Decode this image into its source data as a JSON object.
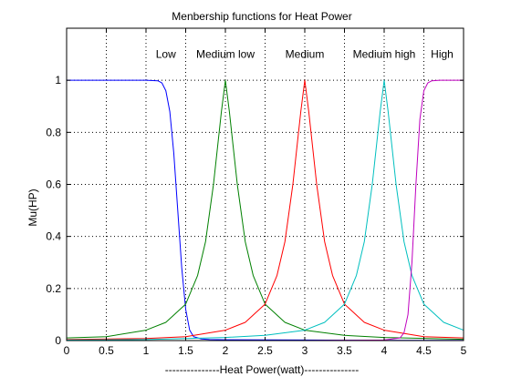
{
  "chart_data": {
    "type": "line",
    "title": "Menbership functions for Heat Power",
    "xlabel": "---------------Heat Power(watt)---------------",
    "ylabel": "Mu(HP)",
    "xlim": [
      0,
      5
    ],
    "ylim": [
      0,
      1.2
    ],
    "xticks": [
      "0",
      "0.5",
      "1",
      "1.5",
      "2",
      "2.5",
      "3",
      "3.5",
      "4",
      "4.5",
      "5"
    ],
    "yticks": [
      "0",
      "0.2",
      "0.4",
      "0.6",
      "0.8",
      "1"
    ],
    "grid": true,
    "grid_style": "dotted",
    "series": [
      {
        "label": "Low",
        "label_x": 1.25,
        "label_y": 1.1,
        "color": "#0000ff",
        "x": [
          0,
          1.0,
          1.15,
          1.2,
          1.25,
          1.3,
          1.35,
          1.4,
          1.45,
          1.5,
          1.55,
          1.6,
          1.7,
          1.8,
          2.0,
          3.0,
          4.0,
          5.0
        ],
        "y": [
          1.0,
          1.0,
          0.998,
          0.99,
          0.96,
          0.88,
          0.72,
          0.5,
          0.28,
          0.12,
          0.04,
          0.015,
          0.006,
          0.004,
          0.003,
          0.002,
          0.001,
          0.001
        ]
      },
      {
        "label": "Medium low",
        "label_x": 2.0,
        "label_y": 1.1,
        "color": "#008000",
        "x": [
          0,
          0.5,
          1.0,
          1.25,
          1.5,
          1.65,
          1.75,
          1.85,
          1.9,
          1.95,
          2.0,
          2.05,
          2.1,
          2.15,
          2.25,
          2.35,
          2.5,
          2.75,
          3.0,
          3.5,
          4.0,
          5.0
        ],
        "y": [
          0.01,
          0.015,
          0.04,
          0.07,
          0.14,
          0.25,
          0.38,
          0.6,
          0.74,
          0.88,
          1.0,
          0.88,
          0.74,
          0.6,
          0.38,
          0.25,
          0.14,
          0.07,
          0.04,
          0.02,
          0.012,
          0.005
        ]
      },
      {
        "label": "Medium",
        "label_x": 3.0,
        "label_y": 1.1,
        "color": "#ff0000",
        "x": [
          0,
          1.0,
          1.5,
          2.0,
          2.25,
          2.5,
          2.65,
          2.75,
          2.85,
          2.9,
          2.95,
          3.0,
          3.05,
          3.1,
          3.15,
          3.25,
          3.35,
          3.5,
          3.75,
          4.0,
          4.5,
          5.0
        ],
        "y": [
          0.004,
          0.008,
          0.015,
          0.04,
          0.07,
          0.14,
          0.25,
          0.38,
          0.6,
          0.74,
          0.88,
          1.0,
          0.88,
          0.74,
          0.6,
          0.38,
          0.25,
          0.14,
          0.07,
          0.04,
          0.015,
          0.01
        ]
      },
      {
        "label": "Medium high",
        "label_x": 4.0,
        "label_y": 1.1,
        "color": "#00bfbf",
        "x": [
          0,
          1.0,
          2.0,
          2.5,
          3.0,
          3.25,
          3.5,
          3.65,
          3.75,
          3.85,
          3.9,
          3.95,
          4.0,
          4.05,
          4.1,
          4.15,
          4.25,
          4.35,
          4.5,
          4.75,
          5.0
        ],
        "y": [
          0.002,
          0.004,
          0.012,
          0.02,
          0.04,
          0.07,
          0.14,
          0.25,
          0.38,
          0.6,
          0.74,
          0.88,
          1.0,
          0.88,
          0.74,
          0.6,
          0.38,
          0.25,
          0.14,
          0.07,
          0.04
        ]
      },
      {
        "label": "High",
        "label_x": 4.73,
        "label_y": 1.1,
        "color": "#bf00bf",
        "x": [
          0,
          3.0,
          4.0,
          4.2,
          4.25,
          4.3,
          4.35,
          4.4,
          4.45,
          4.5,
          4.55,
          4.6,
          4.7,
          5.0
        ],
        "y": [
          0.0,
          0.0,
          0.002,
          0.01,
          0.03,
          0.1,
          0.3,
          0.6,
          0.85,
          0.96,
          0.99,
          0.998,
          1.0,
          1.0
        ]
      }
    ]
  }
}
